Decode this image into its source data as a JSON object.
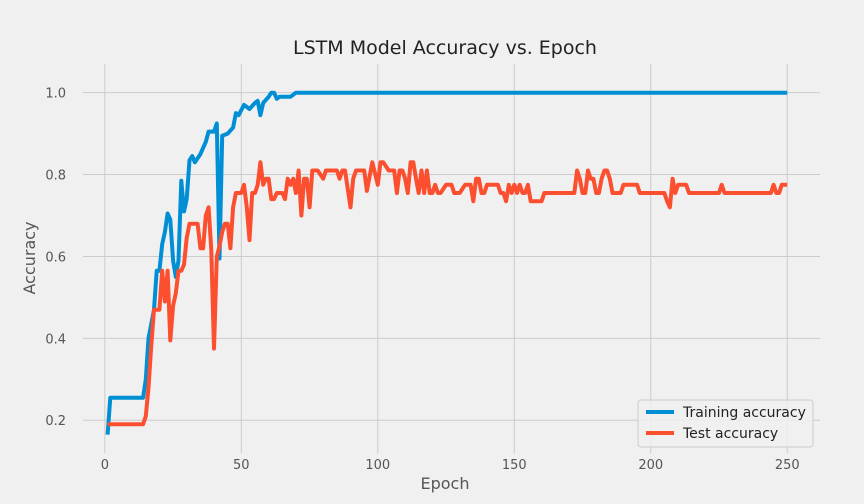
{
  "chart_data": {
    "type": "line",
    "title": "LSTM Model Accuracy vs. Epoch",
    "xlabel": "Epoch",
    "ylabel": "Accuracy",
    "xlim": [
      -8,
      262
    ],
    "ylim": [
      0.12,
      1.07
    ],
    "xticks": [
      0,
      50,
      100,
      150,
      200,
      250
    ],
    "yticks": [
      0.2,
      0.4,
      0.6,
      0.8,
      1.0
    ],
    "ytick_labels": [
      "0.2",
      "0.4",
      "0.6",
      "0.8",
      "1.0"
    ],
    "grid": true,
    "legend": "bottom-right",
    "series": [
      {
        "name": "Training accuracy",
        "color": "#008fd5",
        "points": [
          [
            1,
            0.165
          ],
          [
            2,
            0.255
          ],
          [
            5,
            0.255
          ],
          [
            10,
            0.255
          ],
          [
            14,
            0.255
          ],
          [
            15,
            0.3
          ],
          [
            16,
            0.4
          ],
          [
            18,
            0.47
          ],
          [
            19,
            0.565
          ],
          [
            20,
            0.565
          ],
          [
            21,
            0.63
          ],
          [
            22,
            0.66
          ],
          [
            23,
            0.705
          ],
          [
            24,
            0.69
          ],
          [
            25,
            0.59
          ],
          [
            26,
            0.55
          ],
          [
            27,
            0.59
          ],
          [
            28,
            0.785
          ],
          [
            29,
            0.71
          ],
          [
            30,
            0.74
          ],
          [
            31,
            0.835
          ],
          [
            32,
            0.845
          ],
          [
            33,
            0.83
          ],
          [
            35,
            0.85
          ],
          [
            37,
            0.88
          ],
          [
            38,
            0.905
          ],
          [
            40,
            0.905
          ],
          [
            41,
            0.925
          ],
          [
            42,
            0.595
          ],
          [
            43,
            0.895
          ],
          [
            45,
            0.9
          ],
          [
            47,
            0.915
          ],
          [
            48,
            0.95
          ],
          [
            49,
            0.945
          ],
          [
            51,
            0.97
          ],
          [
            53,
            0.96
          ],
          [
            55,
            0.975
          ],
          [
            56,
            0.98
          ],
          [
            57,
            0.945
          ],
          [
            58,
            0.975
          ],
          [
            60,
            0.99
          ],
          [
            61,
            1.0
          ],
          [
            62,
            1.0
          ],
          [
            63,
            0.985
          ],
          [
            64,
            0.99
          ],
          [
            68,
            0.99
          ],
          [
            70,
            1.0
          ],
          [
            100,
            1.0
          ],
          [
            150,
            1.0
          ],
          [
            200,
            1.0
          ],
          [
            250,
            1.0
          ]
        ]
      },
      {
        "name": "Test accuracy",
        "color": "#fc4f30",
        "points": [
          [
            1,
            0.19
          ],
          [
            5,
            0.19
          ],
          [
            10,
            0.19
          ],
          [
            14,
            0.19
          ],
          [
            15,
            0.21
          ],
          [
            16,
            0.28
          ],
          [
            17,
            0.38
          ],
          [
            18,
            0.47
          ],
          [
            19,
            0.47
          ],
          [
            20,
            0.47
          ],
          [
            21,
            0.565
          ],
          [
            22,
            0.49
          ],
          [
            23,
            0.565
          ],
          [
            24,
            0.395
          ],
          [
            25,
            0.48
          ],
          [
            26,
            0.51
          ],
          [
            27,
            0.565
          ],
          [
            28,
            0.565
          ],
          [
            29,
            0.58
          ],
          [
            30,
            0.645
          ],
          [
            31,
            0.68
          ],
          [
            32,
            0.68
          ],
          [
            33,
            0.68
          ],
          [
            34,
            0.68
          ],
          [
            35,
            0.62
          ],
          [
            36,
            0.62
          ],
          [
            37,
            0.7
          ],
          [
            38,
            0.72
          ],
          [
            39,
            0.615
          ],
          [
            40,
            0.375
          ],
          [
            41,
            0.6
          ],
          [
            42,
            0.625
          ],
          [
            43,
            0.66
          ],
          [
            44,
            0.68
          ],
          [
            45,
            0.68
          ],
          [
            46,
            0.62
          ],
          [
            47,
            0.72
          ],
          [
            48,
            0.755
          ],
          [
            49,
            0.755
          ],
          [
            50,
            0.755
          ],
          [
            51,
            0.775
          ],
          [
            52,
            0.72
          ],
          [
            53,
            0.64
          ],
          [
            54,
            0.755
          ],
          [
            55,
            0.755
          ],
          [
            56,
            0.775
          ],
          [
            57,
            0.83
          ],
          [
            58,
            0.775
          ],
          [
            59,
            0.79
          ],
          [
            60,
            0.79
          ],
          [
            61,
            0.74
          ],
          [
            62,
            0.74
          ],
          [
            63,
            0.755
          ],
          [
            64,
            0.755
          ],
          [
            65,
            0.755
          ],
          [
            66,
            0.74
          ],
          [
            67,
            0.79
          ],
          [
            68,
            0.775
          ],
          [
            69,
            0.79
          ],
          [
            70,
            0.755
          ],
          [
            71,
            0.81
          ],
          [
            72,
            0.7
          ],
          [
            73,
            0.79
          ],
          [
            74,
            0.79
          ],
          [
            75,
            0.72
          ],
          [
            76,
            0.81
          ],
          [
            77,
            0.81
          ],
          [
            78,
            0.81
          ],
          [
            80,
            0.79
          ],
          [
            81,
            0.81
          ],
          [
            83,
            0.81
          ],
          [
            85,
            0.81
          ],
          [
            86,
            0.79
          ],
          [
            87,
            0.81
          ],
          [
            88,
            0.81
          ],
          [
            90,
            0.72
          ],
          [
            91,
            0.79
          ],
          [
            92,
            0.81
          ],
          [
            93,
            0.81
          ],
          [
            95,
            0.81
          ],
          [
            96,
            0.76
          ],
          [
            98,
            0.83
          ],
          [
            100,
            0.775
          ],
          [
            101,
            0.83
          ],
          [
            102,
            0.83
          ],
          [
            104,
            0.81
          ],
          [
            105,
            0.81
          ],
          [
            106,
            0.81
          ],
          [
            107,
            0.755
          ],
          [
            108,
            0.81
          ],
          [
            109,
            0.81
          ],
          [
            110,
            0.79
          ],
          [
            111,
            0.755
          ],
          [
            112,
            0.83
          ],
          [
            113,
            0.83
          ],
          [
            114,
            0.79
          ],
          [
            115,
            0.755
          ],
          [
            116,
            0.81
          ],
          [
            117,
            0.755
          ],
          [
            118,
            0.81
          ],
          [
            119,
            0.755
          ],
          [
            120,
            0.755
          ],
          [
            121,
            0.775
          ],
          [
            122,
            0.755
          ],
          [
            123,
            0.755
          ],
          [
            125,
            0.775
          ],
          [
            127,
            0.775
          ],
          [
            128,
            0.755
          ],
          [
            130,
            0.755
          ],
          [
            132,
            0.775
          ],
          [
            134,
            0.775
          ],
          [
            135,
            0.735
          ],
          [
            136,
            0.79
          ],
          [
            137,
            0.79
          ],
          [
            138,
            0.755
          ],
          [
            139,
            0.755
          ],
          [
            140,
            0.775
          ],
          [
            142,
            0.775
          ],
          [
            144,
            0.775
          ],
          [
            145,
            0.755
          ],
          [
            146,
            0.755
          ],
          [
            147,
            0.735
          ],
          [
            148,
            0.775
          ],
          [
            149,
            0.755
          ],
          [
            150,
            0.775
          ],
          [
            151,
            0.755
          ],
          [
            152,
            0.775
          ],
          [
            153,
            0.755
          ],
          [
            154,
            0.755
          ],
          [
            155,
            0.775
          ],
          [
            156,
            0.735
          ],
          [
            158,
            0.735
          ],
          [
            160,
            0.735
          ],
          [
            161,
            0.755
          ],
          [
            165,
            0.755
          ],
          [
            170,
            0.755
          ],
          [
            172,
            0.755
          ],
          [
            173,
            0.81
          ],
          [
            174,
            0.79
          ],
          [
            175,
            0.755
          ],
          [
            176,
            0.755
          ],
          [
            177,
            0.81
          ],
          [
            178,
            0.79
          ],
          [
            179,
            0.79
          ],
          [
            180,
            0.755
          ],
          [
            181,
            0.755
          ],
          [
            182,
            0.79
          ],
          [
            183,
            0.81
          ],
          [
            184,
            0.81
          ],
          [
            185,
            0.79
          ],
          [
            186,
            0.755
          ],
          [
            188,
            0.755
          ],
          [
            189,
            0.755
          ],
          [
            190,
            0.775
          ],
          [
            195,
            0.775
          ],
          [
            196,
            0.755
          ],
          [
            200,
            0.755
          ],
          [
            205,
            0.755
          ],
          [
            206,
            0.735
          ],
          [
            207,
            0.72
          ],
          [
            208,
            0.79
          ],
          [
            209,
            0.755
          ],
          [
            210,
            0.775
          ],
          [
            213,
            0.775
          ],
          [
            214,
            0.755
          ],
          [
            220,
            0.755
          ],
          [
            225,
            0.755
          ],
          [
            226,
            0.775
          ],
          [
            227,
            0.755
          ],
          [
            235,
            0.755
          ],
          [
            240,
            0.755
          ],
          [
            244,
            0.755
          ],
          [
            245,
            0.775
          ],
          [
            246,
            0.755
          ],
          [
            247,
            0.755
          ],
          [
            248,
            0.775
          ],
          [
            250,
            0.775
          ]
        ]
      }
    ]
  },
  "colors": {
    "background": "#f0f0f0",
    "grid": "#cbcbcb",
    "tick_label": "#555555",
    "title": "#222222"
  }
}
